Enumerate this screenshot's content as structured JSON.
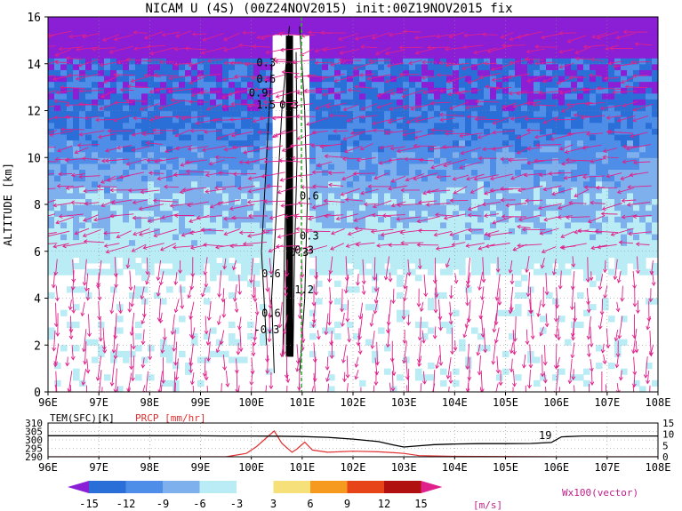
{
  "chart_data": [
    {
      "type": "heatmap",
      "title": "NICAM U (4S) (00Z24NOV2015) init:00Z19NOV2015 fix",
      "xlabel": "",
      "ylabel": "ALTITUDE [km]",
      "x_tick_labels": [
        "96E",
        "97E",
        "98E",
        "99E",
        "100E",
        "101E",
        "102E",
        "103E",
        "104E",
        "105E",
        "106E",
        "107E",
        "108E"
      ],
      "x_ticks": [
        96,
        97,
        98,
        99,
        100,
        101,
        102,
        103,
        104,
        105,
        106,
        107,
        108
      ],
      "xlim": [
        96,
        108
      ],
      "y_ticks": [
        0,
        2,
        4,
        6,
        8,
        10,
        12,
        14,
        16
      ],
      "ylim": [
        0,
        16
      ],
      "grid": true,
      "colorbar": {
        "levels": [
          "-15",
          "-12",
          "-9",
          "-6",
          "-3",
          "3",
          "6",
          "9",
          "12",
          "15"
        ],
        "colors": [
          "#8a1fd6",
          "#2a6fd8",
          "#4e8ee8",
          "#7fb0ee",
          "#b9ecf4",
          "#ffffff",
          "#f5e07a",
          "#f59a1f",
          "#e8441a",
          "#b01010",
          "#e0208a"
        ],
        "unit": "[m/s]"
      },
      "vector_label": "Wx100(vector)",
      "contour_labels": [
        "0.3",
        "0.6",
        "0.9",
        "1.5",
        "0.3",
        "0.6",
        "0.3",
        "0.3",
        "0.6",
        "1.2",
        "0.3",
        "0.6",
        "-0.3"
      ]
    },
    {
      "type": "line",
      "xlim": [
        96,
        108
      ],
      "x_tick_labels": [
        "96E",
        "97E",
        "98E",
        "99E",
        "100E",
        "101E",
        "102E",
        "103E",
        "104E",
        "105E",
        "106E",
        "107E",
        "108E"
      ],
      "legend": [
        "TEM(SFC)[K]",
        "PRCP [mm/hr]"
      ],
      "y_left_ticks": [
        "310",
        "305",
        "300",
        "295",
        "290"
      ],
      "y_right_ticks": [
        "15",
        "10",
        "5",
        "0"
      ],
      "annotation": "19",
      "series": [
        {
          "name": "TEM(SFC)[K]",
          "color": "#000000",
          "ylim": [
            290,
            310
          ],
          "x": [
            96,
            96.5,
            97,
            97.5,
            98,
            98.5,
            99,
            99.5,
            100,
            100.5,
            101,
            101.5,
            102,
            102.5,
            102.8,
            103,
            103.3,
            103.6,
            104,
            104.5,
            105,
            105.5,
            105.9,
            106.1,
            106.5,
            107,
            108
          ],
          "values": [
            302.5,
            302.5,
            302.5,
            302.5,
            302.5,
            302.5,
            302.4,
            302.3,
            302.3,
            302.2,
            302.0,
            301.5,
            300.5,
            299.0,
            297.0,
            295.8,
            296.5,
            297.2,
            297.6,
            297.8,
            297.8,
            297.9,
            298.5,
            301.8,
            302.3,
            302.3,
            302.3
          ]
        },
        {
          "name": "PRCP [mm/hr]",
          "color": "#e03030",
          "ylim": [
            0,
            15
          ],
          "x": [
            96,
            99.5,
            99.9,
            100.1,
            100.3,
            100.45,
            100.6,
            100.8,
            100.9,
            101.05,
            101.2,
            101.5,
            102,
            102.5,
            102.8,
            103.0,
            103.3,
            104,
            106,
            108
          ],
          "values": [
            0,
            0,
            1.5,
            4.5,
            8.5,
            11.5,
            6.0,
            2.0,
            3.5,
            6.5,
            3.0,
            2.0,
            2.5,
            2.2,
            1.8,
            1.5,
            0.5,
            0.2,
            0,
            0
          ]
        }
      ]
    }
  ]
}
